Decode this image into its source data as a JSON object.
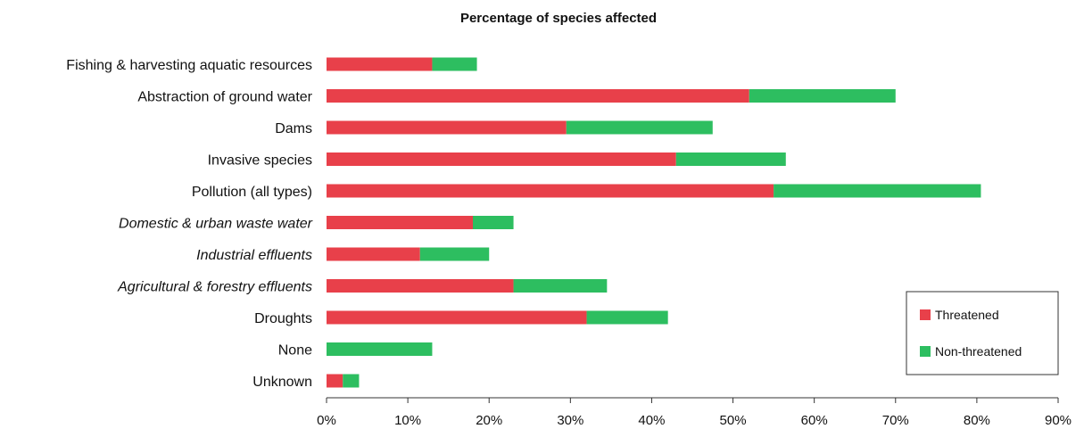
{
  "chart_data": {
    "type": "bar",
    "orientation": "horizontal",
    "stacked": true,
    "title": "Percentage of species affected",
    "categories": [
      "Fishing & harvesting aquatic resources",
      "Abstraction of ground water",
      "Dams",
      "Invasive species",
      "Pollution (all types)",
      "Domestic & urban waste water",
      "Industrial effluents",
      "Agricultural & forestry effluents",
      "Droughts",
      "None",
      "Unknown"
    ],
    "italic_categories": [
      "Domestic & urban waste water",
      "Industrial effluents",
      "Agricultural & forestry effluents"
    ],
    "series": [
      {
        "name": "Threatened",
        "color": "#e8404a",
        "values": [
          13,
          52,
          29.5,
          43,
          55,
          18,
          11.5,
          23,
          32,
          0,
          2
        ]
      },
      {
        "name": "Non-threatened",
        "color": "#2dbe60",
        "values": [
          5.5,
          18,
          18,
          13.5,
          25.5,
          5,
          8.5,
          11.5,
          10,
          13,
          2
        ]
      }
    ],
    "x_ticks": [
      "0%",
      "10%",
      "20%",
      "30%",
      "40%",
      "50%",
      "60%",
      "70%",
      "80%",
      "90%"
    ],
    "xlim": [
      0,
      90
    ],
    "xlabel": "",
    "ylabel": "",
    "grid": false,
    "legend_position": "right"
  }
}
